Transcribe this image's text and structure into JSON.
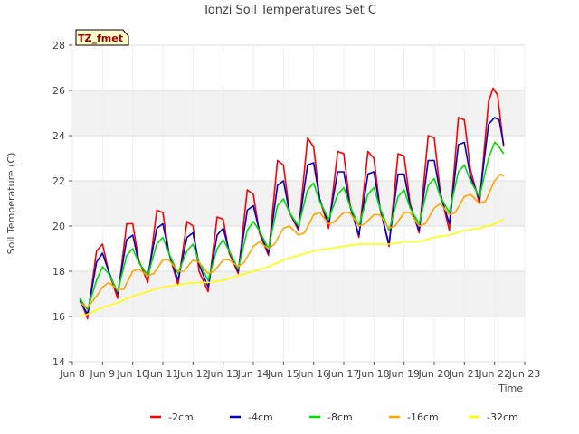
{
  "chart_data": {
    "type": "line",
    "title": "Tonzi Soil Temperatures Set C",
    "xlabel": "Time",
    "ylabel": "Soil Temperature (C)",
    "site_badge": "TZ_fmet",
    "xlim": [
      8,
      23
    ],
    "ylim": [
      14,
      28
    ],
    "y_ticks": [
      14,
      16,
      18,
      20,
      22,
      24,
      26,
      28
    ],
    "x_ticks": [
      {
        "value": 8,
        "label": "Jun 8"
      },
      {
        "value": 9,
        "label": "Jun 9"
      },
      {
        "value": 10,
        "label": "Jun 10"
      },
      {
        "value": 11,
        "label": "Jun 11"
      },
      {
        "value": 12,
        "label": "Jun 12"
      },
      {
        "value": 13,
        "label": "Jun 13"
      },
      {
        "value": 14,
        "label": "Jun 14"
      },
      {
        "value": 15,
        "label": "Jun 15"
      },
      {
        "value": 16,
        "label": "Jun 16"
      },
      {
        "value": 17,
        "label": "Jun 17"
      },
      {
        "value": 18,
        "label": "Jun 18"
      },
      {
        "value": 19,
        "label": "Jun 19"
      },
      {
        "value": 20,
        "label": "Jun 20"
      },
      {
        "value": 21,
        "label": "Jun 21"
      },
      {
        "value": 22,
        "label": "Jun 22"
      },
      {
        "value": 23,
        "label": "Jun 23"
      }
    ],
    "grid": true,
    "legend_position": "bottom",
    "series": [
      {
        "name": "-2cm",
        "color": "#ff0000",
        "points": [
          [
            8.25,
            16.8
          ],
          [
            8.5,
            15.9
          ],
          [
            8.8,
            18.9
          ],
          [
            9.0,
            19.2
          ],
          [
            9.2,
            18.0
          ],
          [
            9.5,
            16.8
          ],
          [
            9.8,
            20.1
          ],
          [
            10.0,
            20.1
          ],
          [
            10.2,
            18.5
          ],
          [
            10.5,
            17.5
          ],
          [
            10.8,
            20.7
          ],
          [
            11.0,
            20.6
          ],
          [
            11.2,
            18.8
          ],
          [
            11.5,
            17.4
          ],
          [
            11.8,
            20.2
          ],
          [
            12.0,
            20.0
          ],
          [
            12.2,
            18.0
          ],
          [
            12.5,
            17.1
          ],
          [
            12.8,
            20.4
          ],
          [
            13.0,
            20.3
          ],
          [
            13.2,
            18.8
          ],
          [
            13.5,
            17.9
          ],
          [
            13.8,
            21.6
          ],
          [
            14.0,
            21.4
          ],
          [
            14.2,
            19.7
          ],
          [
            14.5,
            18.7
          ],
          [
            14.8,
            22.9
          ],
          [
            15.0,
            22.7
          ],
          [
            15.2,
            20.6
          ],
          [
            15.5,
            19.8
          ],
          [
            15.8,
            23.9
          ],
          [
            16.0,
            23.5
          ],
          [
            16.2,
            21.2
          ],
          [
            16.5,
            19.9
          ],
          [
            16.8,
            23.3
          ],
          [
            17.0,
            23.2
          ],
          [
            17.2,
            21.0
          ],
          [
            17.5,
            19.5
          ],
          [
            17.8,
            23.3
          ],
          [
            18.0,
            23.0
          ],
          [
            18.2,
            20.8
          ],
          [
            18.5,
            19.1
          ],
          [
            18.8,
            23.2
          ],
          [
            19.0,
            23.1
          ],
          [
            19.2,
            21.0
          ],
          [
            19.5,
            19.7
          ],
          [
            19.8,
            24.0
          ],
          [
            20.0,
            23.9
          ],
          [
            20.2,
            21.5
          ],
          [
            20.5,
            19.8
          ],
          [
            20.8,
            24.8
          ],
          [
            21.0,
            24.7
          ],
          [
            21.2,
            22.5
          ],
          [
            21.5,
            21.0
          ],
          [
            21.8,
            25.5
          ],
          [
            21.95,
            26.1
          ],
          [
            22.1,
            25.8
          ],
          [
            22.3,
            23.5
          ]
        ]
      },
      {
        "name": "-4cm",
        "color": "#0000cc",
        "points": [
          [
            8.25,
            16.7
          ],
          [
            8.5,
            16.1
          ],
          [
            8.8,
            18.4
          ],
          [
            9.0,
            18.8
          ],
          [
            9.2,
            18.0
          ],
          [
            9.5,
            17.0
          ],
          [
            9.8,
            19.4
          ],
          [
            10.0,
            19.6
          ],
          [
            10.2,
            18.4
          ],
          [
            10.5,
            17.8
          ],
          [
            10.8,
            19.9
          ],
          [
            11.0,
            20.1
          ],
          [
            11.2,
            18.8
          ],
          [
            11.5,
            17.6
          ],
          [
            11.8,
            19.5
          ],
          [
            12.0,
            19.7
          ],
          [
            12.2,
            18.3
          ],
          [
            12.5,
            17.3
          ],
          [
            12.8,
            19.6
          ],
          [
            13.0,
            19.9
          ],
          [
            13.2,
            18.9
          ],
          [
            13.5,
            18.0
          ],
          [
            13.8,
            20.7
          ],
          [
            14.0,
            20.9
          ],
          [
            14.2,
            19.8
          ],
          [
            14.5,
            18.8
          ],
          [
            14.8,
            21.8
          ],
          [
            15.0,
            22.0
          ],
          [
            15.2,
            20.6
          ],
          [
            15.5,
            19.9
          ],
          [
            15.8,
            22.7
          ],
          [
            16.0,
            22.8
          ],
          [
            16.2,
            21.2
          ],
          [
            16.5,
            20.1
          ],
          [
            16.8,
            22.4
          ],
          [
            17.0,
            22.4
          ],
          [
            17.2,
            20.9
          ],
          [
            17.5,
            19.6
          ],
          [
            17.8,
            22.3
          ],
          [
            18.0,
            22.4
          ],
          [
            18.2,
            20.8
          ],
          [
            18.5,
            19.2
          ],
          [
            18.8,
            22.3
          ],
          [
            19.0,
            22.3
          ],
          [
            19.2,
            20.9
          ],
          [
            19.5,
            19.8
          ],
          [
            19.8,
            22.9
          ],
          [
            20.0,
            22.9
          ],
          [
            20.2,
            21.4
          ],
          [
            20.5,
            20.1
          ],
          [
            20.8,
            23.6
          ],
          [
            21.0,
            23.7
          ],
          [
            21.2,
            22.2
          ],
          [
            21.5,
            21.2
          ],
          [
            21.8,
            24.5
          ],
          [
            22.0,
            24.8
          ],
          [
            22.15,
            24.7
          ],
          [
            22.3,
            23.6
          ]
        ]
      },
      {
        "name": "-8cm",
        "color": "#00dd00",
        "points": [
          [
            8.25,
            16.8
          ],
          [
            8.5,
            16.3
          ],
          [
            8.8,
            17.6
          ],
          [
            9.0,
            18.2
          ],
          [
            9.2,
            17.9
          ],
          [
            9.5,
            17.1
          ],
          [
            9.8,
            18.7
          ],
          [
            10.0,
            19.0
          ],
          [
            10.2,
            18.4
          ],
          [
            10.5,
            17.8
          ],
          [
            10.8,
            19.2
          ],
          [
            11.0,
            19.5
          ],
          [
            11.2,
            18.8
          ],
          [
            11.5,
            17.9
          ],
          [
            11.8,
            18.9
          ],
          [
            12.0,
            19.2
          ],
          [
            12.2,
            18.4
          ],
          [
            12.5,
            17.6
          ],
          [
            12.8,
            19.0
          ],
          [
            13.0,
            19.4
          ],
          [
            13.2,
            18.9
          ],
          [
            13.5,
            18.1
          ],
          [
            13.8,
            19.8
          ],
          [
            14.0,
            20.2
          ],
          [
            14.2,
            19.8
          ],
          [
            14.5,
            19.0
          ],
          [
            14.8,
            20.9
          ],
          [
            15.0,
            21.2
          ],
          [
            15.2,
            20.6
          ],
          [
            15.5,
            20.0
          ],
          [
            15.8,
            21.6
          ],
          [
            16.0,
            21.9
          ],
          [
            16.2,
            21.1
          ],
          [
            16.5,
            20.3
          ],
          [
            16.8,
            21.4
          ],
          [
            17.0,
            21.7
          ],
          [
            17.2,
            20.9
          ],
          [
            17.5,
            20.0
          ],
          [
            17.8,
            21.4
          ],
          [
            18.0,
            21.7
          ],
          [
            18.2,
            20.8
          ],
          [
            18.5,
            19.8
          ],
          [
            18.8,
            21.3
          ],
          [
            19.0,
            21.6
          ],
          [
            19.2,
            20.8
          ],
          [
            19.5,
            20.1
          ],
          [
            19.8,
            21.8
          ],
          [
            20.0,
            22.1
          ],
          [
            20.2,
            21.3
          ],
          [
            20.5,
            20.6
          ],
          [
            20.8,
            22.4
          ],
          [
            21.0,
            22.7
          ],
          [
            21.2,
            22.0
          ],
          [
            21.5,
            21.3
          ],
          [
            21.8,
            23.0
          ],
          [
            22.0,
            23.7
          ],
          [
            22.1,
            23.6
          ],
          [
            22.3,
            23.2
          ]
        ]
      },
      {
        "name": "-16cm",
        "color": "#ffa500",
        "points": [
          [
            8.25,
            16.6
          ],
          [
            8.5,
            16.4
          ],
          [
            8.8,
            16.9
          ],
          [
            9.0,
            17.3
          ],
          [
            9.2,
            17.5
          ],
          [
            9.5,
            17.2
          ],
          [
            9.7,
            17.2
          ],
          [
            10.0,
            18.0
          ],
          [
            10.2,
            18.1
          ],
          [
            10.5,
            17.8
          ],
          [
            10.7,
            17.9
          ],
          [
            11.0,
            18.5
          ],
          [
            11.2,
            18.5
          ],
          [
            11.5,
            18.0
          ],
          [
            11.7,
            18.0
          ],
          [
            12.0,
            18.5
          ],
          [
            12.2,
            18.4
          ],
          [
            12.5,
            17.9
          ],
          [
            12.7,
            18.0
          ],
          [
            13.0,
            18.5
          ],
          [
            13.2,
            18.5
          ],
          [
            13.5,
            18.2
          ],
          [
            13.7,
            18.4
          ],
          [
            14.0,
            19.1
          ],
          [
            14.2,
            19.3
          ],
          [
            14.5,
            19.0
          ],
          [
            14.7,
            19.2
          ],
          [
            15.0,
            19.9
          ],
          [
            15.2,
            20.0
          ],
          [
            15.5,
            19.6
          ],
          [
            15.7,
            19.7
          ],
          [
            16.0,
            20.5
          ],
          [
            16.2,
            20.6
          ],
          [
            16.5,
            20.1
          ],
          [
            16.7,
            20.2
          ],
          [
            17.0,
            20.6
          ],
          [
            17.2,
            20.6
          ],
          [
            17.5,
            20.0
          ],
          [
            17.7,
            20.1
          ],
          [
            18.0,
            20.5
          ],
          [
            18.2,
            20.5
          ],
          [
            18.5,
            19.9
          ],
          [
            18.7,
            20.0
          ],
          [
            19.0,
            20.6
          ],
          [
            19.2,
            20.6
          ],
          [
            19.5,
            20.0
          ],
          [
            19.7,
            20.1
          ],
          [
            20.0,
            20.8
          ],
          [
            20.2,
            21.0
          ],
          [
            20.5,
            20.5
          ],
          [
            20.7,
            20.6
          ],
          [
            21.0,
            21.3
          ],
          [
            21.2,
            21.4
          ],
          [
            21.5,
            21.0
          ],
          [
            21.7,
            21.1
          ],
          [
            22.0,
            22.0
          ],
          [
            22.2,
            22.3
          ],
          [
            22.3,
            22.2
          ]
        ]
      },
      {
        "name": "-32cm",
        "color": "#ffff00",
        "points": [
          [
            8.25,
            16.0
          ],
          [
            8.5,
            16.1
          ],
          [
            9.0,
            16.4
          ],
          [
            9.5,
            16.6
          ],
          [
            10.0,
            16.9
          ],
          [
            10.5,
            17.1
          ],
          [
            11.0,
            17.3
          ],
          [
            11.5,
            17.4
          ],
          [
            12.0,
            17.5
          ],
          [
            12.5,
            17.5
          ],
          [
            13.0,
            17.6
          ],
          [
            13.5,
            17.8
          ],
          [
            14.0,
            18.0
          ],
          [
            14.5,
            18.2
          ],
          [
            15.0,
            18.5
          ],
          [
            15.5,
            18.7
          ],
          [
            16.0,
            18.9
          ],
          [
            16.5,
            19.0
          ],
          [
            17.0,
            19.1
          ],
          [
            17.5,
            19.2
          ],
          [
            18.0,
            19.2
          ],
          [
            18.5,
            19.2
          ],
          [
            19.0,
            19.3
          ],
          [
            19.5,
            19.3
          ],
          [
            20.0,
            19.5
          ],
          [
            20.5,
            19.6
          ],
          [
            21.0,
            19.8
          ],
          [
            21.5,
            19.9
          ],
          [
            22.0,
            20.1
          ],
          [
            22.3,
            20.3
          ]
        ]
      }
    ]
  }
}
